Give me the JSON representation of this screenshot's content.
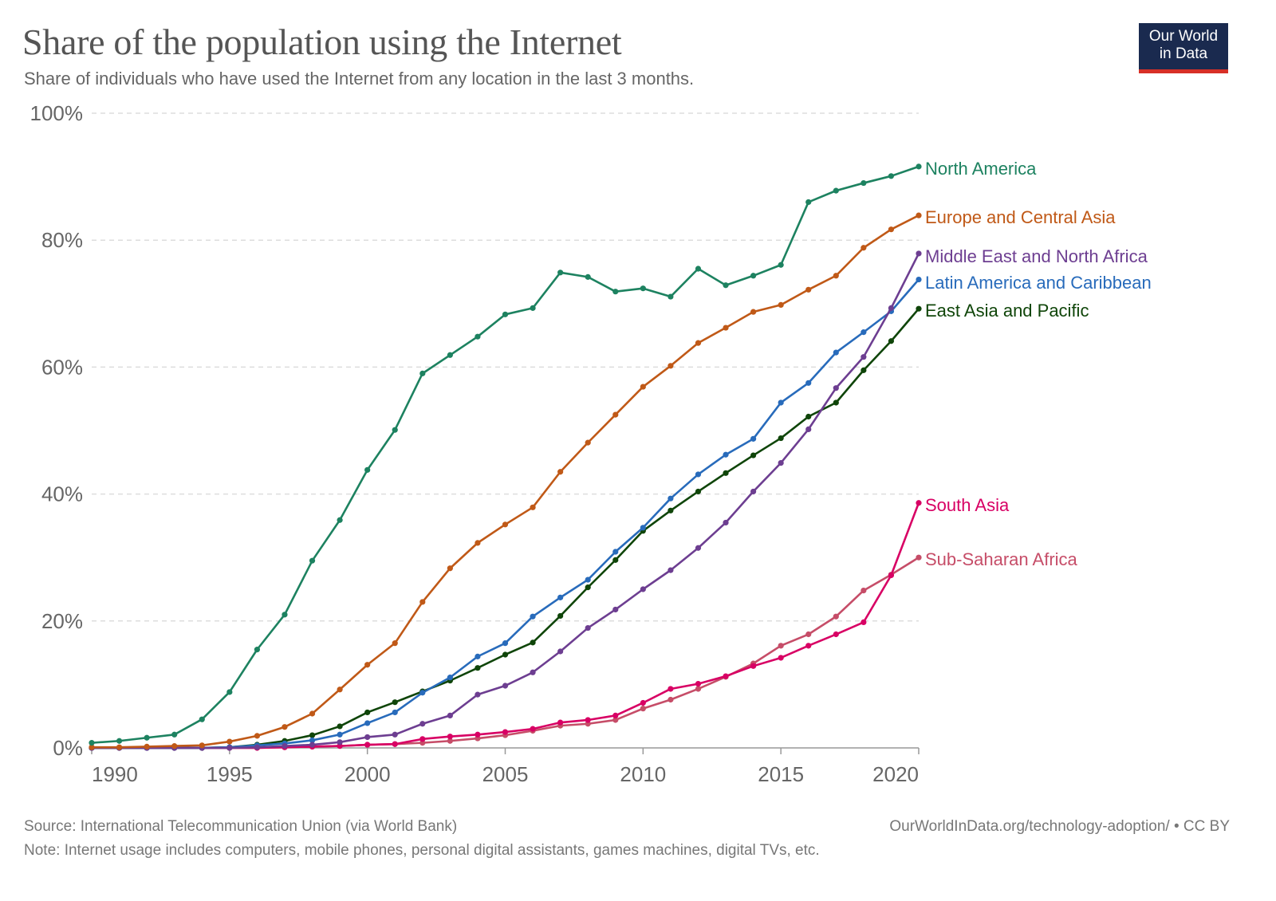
{
  "header": {
    "title": "Share of the population using the Internet",
    "subtitle": "Share of individuals who have used the Internet from any location in the last 3 months.",
    "logo_line1": "Our World",
    "logo_line2": "in Data"
  },
  "footer": {
    "source": "Source: International Telecommunication Union (via World Bank)",
    "url": "OurWorldInData.org/technology-adoption/ • CC BY",
    "note": "Note: Internet usage includes computers, mobile phones, personal digital assistants, games machines, digital TVs, etc."
  },
  "chart_data": {
    "type": "line",
    "title": "Share of the population using the Internet",
    "subtitle": "Share of individuals who have used the Internet from any location in the last 3 months.",
    "xlabel": "",
    "ylabel": "",
    "xlim": [
      1990,
      2020
    ],
    "ylim": [
      0,
      100
    ],
    "x_ticks": [
      1990,
      1995,
      2000,
      2005,
      2010,
      2015,
      2020
    ],
    "x_tick_labels": [
      "1990",
      "1995",
      "2000",
      "2005",
      "2010",
      "2015",
      "2020"
    ],
    "y_ticks": [
      0,
      20,
      40,
      60,
      80,
      100
    ],
    "y_tick_labels": [
      "0%",
      "20%",
      "40%",
      "60%",
      "80%",
      "100%"
    ],
    "grid": "horizontal dashed",
    "legend": "inline labels at line ends (right)",
    "x": [
      1990,
      1991,
      1992,
      1993,
      1994,
      1995,
      1996,
      1997,
      1998,
      1999,
      2000,
      2001,
      2002,
      2003,
      2004,
      2005,
      2006,
      2007,
      2008,
      2009,
      2010,
      2011,
      2012,
      2013,
      2014,
      2015,
      2016,
      2017,
      2018,
      2019,
      2020
    ],
    "series": [
      {
        "name": "North America",
        "color": "#1d8260",
        "values": [
          0.8,
          1.1,
          1.6,
          2.1,
          4.5,
          8.8,
          15.5,
          21.0,
          29.5,
          35.9,
          43.8,
          50.1,
          59.0,
          61.9,
          64.8,
          68.3,
          69.3,
          74.9,
          74.2,
          71.9,
          72.4,
          71.1,
          75.5,
          72.9,
          74.4,
          76.1,
          86.0,
          87.8,
          89.0,
          90.1,
          91.6
        ]
      },
      {
        "name": "Europe and Central Asia",
        "color": "#c05917",
        "values": [
          0.1,
          0.1,
          0.2,
          0.3,
          0.4,
          1.0,
          1.9,
          3.3,
          5.4,
          9.2,
          13.1,
          16.5,
          23.0,
          28.3,
          32.3,
          35.2,
          37.9,
          43.5,
          48.1,
          52.5,
          56.9,
          60.2,
          63.8,
          66.2,
          68.7,
          69.8,
          72.2,
          74.4,
          78.8,
          81.7,
          83.9
        ]
      },
      {
        "name": "Middle East and North Africa",
        "color": "#6d3e91",
        "values": [
          0.0,
          0.0,
          0.0,
          0.0,
          0.0,
          0.0,
          0.1,
          0.3,
          0.5,
          0.9,
          1.7,
          2.1,
          3.8,
          5.1,
          8.4,
          9.8,
          11.9,
          15.2,
          18.9,
          21.8,
          25.0,
          28.0,
          31.5,
          35.5,
          40.4,
          44.9,
          50.2,
          56.7,
          61.6,
          69.3,
          77.9
        ]
      },
      {
        "name": "Latin America and Caribbean",
        "color": "#286bbb",
        "values": [
          0.0,
          0.0,
          0.0,
          0.0,
          0.0,
          0.1,
          0.4,
          0.7,
          1.2,
          2.1,
          3.9,
          5.6,
          8.7,
          11.1,
          14.4,
          16.5,
          20.7,
          23.7,
          26.5,
          30.9,
          34.7,
          39.3,
          43.1,
          46.2,
          48.7,
          54.4,
          57.5,
          62.3,
          65.5,
          68.8,
          73.8
        ]
      },
      {
        "name": "East Asia and Pacific",
        "color": "#0f4509",
        "values": [
          0.0,
          0.0,
          0.0,
          0.0,
          0.0,
          0.1,
          0.5,
          1.1,
          2.0,
          3.4,
          5.6,
          7.2,
          8.9,
          10.6,
          12.6,
          14.7,
          16.6,
          20.8,
          25.3,
          29.6,
          34.2,
          37.4,
          40.4,
          43.3,
          46.1,
          48.8,
          52.2,
          54.4,
          59.5,
          64.1,
          69.2
        ]
      },
      {
        "name": "South Asia",
        "color": "#d80064",
        "values": [
          0.0,
          0.0,
          0.0,
          0.0,
          0.0,
          0.0,
          0.0,
          0.1,
          0.2,
          0.3,
          0.5,
          0.6,
          1.4,
          1.8,
          2.1,
          2.5,
          3.0,
          4.0,
          4.4,
          5.1,
          7.1,
          9.3,
          10.1,
          11.3,
          12.9,
          14.2,
          16.1,
          17.9,
          19.8,
          27.2,
          38.6
        ]
      },
      {
        "name": "Sub-Saharan Africa",
        "color": "#c64d68",
        "values": [
          0.0,
          0.0,
          0.0,
          0.0,
          0.0,
          0.0,
          0.0,
          0.1,
          0.2,
          0.3,
          0.5,
          0.6,
          0.8,
          1.1,
          1.5,
          2.0,
          2.7,
          3.5,
          3.8,
          4.4,
          6.2,
          7.6,
          9.3,
          11.2,
          13.3,
          16.1,
          17.9,
          20.7,
          24.8,
          27.3,
          30.0
        ]
      }
    ]
  }
}
